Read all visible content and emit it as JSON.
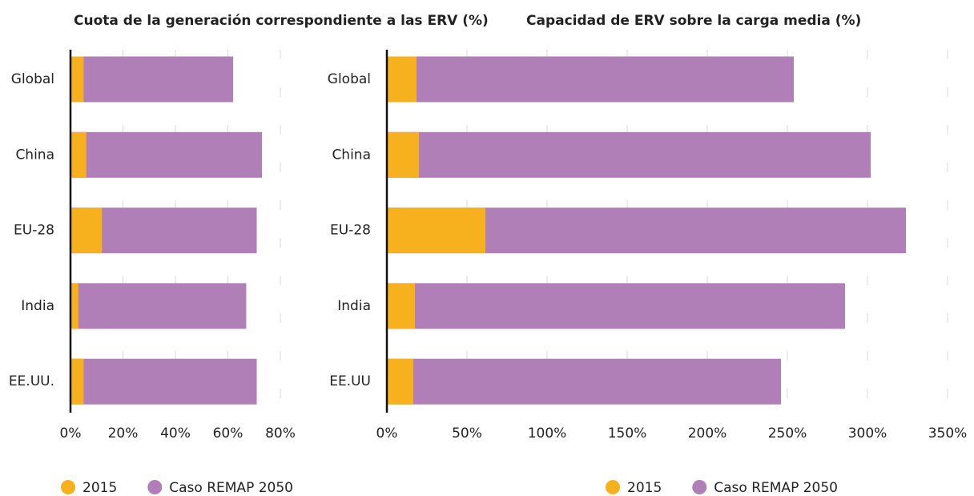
{
  "chart_data": [
    {
      "type": "bar",
      "title": "Cuota de la generación correspondiente a las ERV (%)",
      "categories": [
        "Global",
        "China",
        "EU-28",
        "India",
        "EE.UU."
      ],
      "series": [
        {
          "name": "Caso REMAP 2050",
          "color": "#b07fb8",
          "values": [
            62,
            73,
            71,
            67,
            71
          ]
        },
        {
          "name": "2015",
          "color": "#f8b11e",
          "values": [
            5,
            6,
            12,
            3,
            5
          ]
        }
      ],
      "xlim": [
        0,
        80
      ],
      "xticks": [
        {
          "value": 0,
          "label": "0%"
        },
        {
          "value": 20,
          "label": "20%"
        },
        {
          "value": 40,
          "label": "40%"
        },
        {
          "value": 60,
          "label": "60%"
        },
        {
          "value": 80,
          "label": "80%"
        }
      ],
      "grid": true
    },
    {
      "type": "bar",
      "title": "Capacidad de ERV sobre la carga media (%)",
      "categories": [
        "Global",
        "China",
        "EU-28",
        "India",
        "EE.UU"
      ],
      "series": [
        {
          "name": "Caso REMAP 2050",
          "color": "#b07fb8",
          "values": [
            254,
            302,
            324,
            286,
            246
          ]
        },
        {
          "name": "2015",
          "color": "#f8b11e",
          "values": [
            18.5,
            20,
            61.5,
            17.5,
            16.5
          ]
        }
      ],
      "xlim": [
        0,
        350
      ],
      "xticks": [
        {
          "value": 0,
          "label": "0%"
        },
        {
          "value": 50,
          "label": "50%"
        },
        {
          "value": 100,
          "label": "100%"
        },
        {
          "value": 150,
          "label": "150%"
        },
        {
          "value": 200,
          "label": "200%"
        },
        {
          "value": 250,
          "label": "250%"
        },
        {
          "value": 300,
          "label": "300%"
        },
        {
          "value": 350,
          "label": "350%"
        }
      ],
      "grid": true
    }
  ]
}
